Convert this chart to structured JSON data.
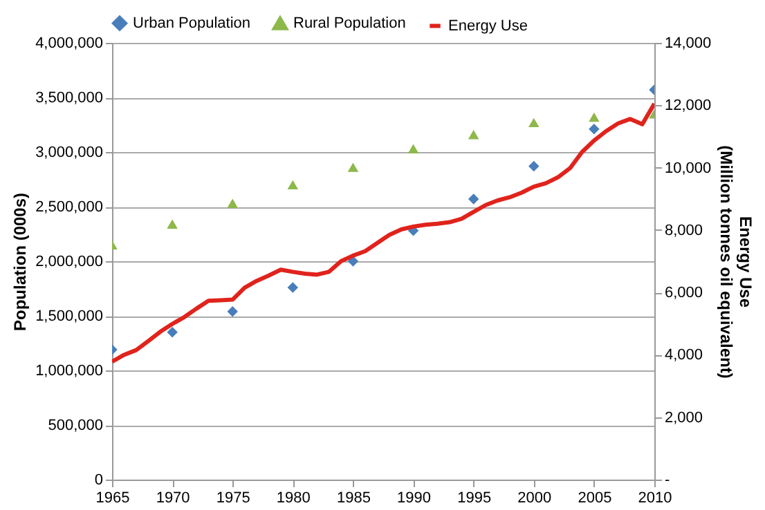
{
  "chart_data": {
    "type": "scatter",
    "xlabel": null,
    "ylabel": "Population (000s)",
    "y2label": "Energy Use\n(Million tonnes oil equivalent)",
    "x": [
      1965,
      1970,
      1975,
      1980,
      1985,
      1990,
      1995,
      2000,
      2005,
      2010
    ],
    "series": [
      {
        "name": "Urban Population",
        "color": "#4a7ebb",
        "marker": "diamond",
        "values": [
          1190000,
          1350000,
          1540000,
          1760000,
          2000000,
          2280000,
          2570000,
          2870000,
          3210000,
          3570000
        ]
      },
      {
        "name": "Rural Population",
        "color": "#8db84a",
        "marker": "triangle",
        "values": [
          2150000,
          2340000,
          2530000,
          2700000,
          2860000,
          3030000,
          3160000,
          3270000,
          3320000,
          3350000
        ]
      },
      {
        "name": "Energy Use",
        "type": "line",
        "axis": "y2",
        "color": "#e0231c",
        "marker": "none",
        "x": [
          1965,
          1966,
          1967,
          1968,
          1969,
          1970,
          1971,
          1972,
          1973,
          1974,
          1975,
          1976,
          1977,
          1978,
          1979,
          1980,
          1981,
          1982,
          1983,
          1984,
          1985,
          1986,
          1987,
          1988,
          1989,
          1990,
          1991,
          1992,
          1993,
          1994,
          1995,
          1996,
          1997,
          1998,
          1999,
          2000,
          2001,
          2002,
          2003,
          2004,
          2005,
          2006,
          2007,
          2008,
          2009,
          2010
        ],
        "values": [
          3780,
          4000,
          4150,
          4440,
          4740,
          4990,
          5210,
          5480,
          5730,
          5750,
          5770,
          6150,
          6370,
          6540,
          6730,
          6660,
          6600,
          6570,
          6660,
          7000,
          7180,
          7320,
          7580,
          7840,
          8020,
          8110,
          8170,
          8200,
          8250,
          8360,
          8580,
          8800,
          8950,
          9050,
          9200,
          9390,
          9500,
          9690,
          9980,
          10500,
          10870,
          11170,
          11420,
          11560,
          11390,
          12050
        ]
      }
    ],
    "xlim": [
      1965,
      2010
    ],
    "xticks": [
      1965,
      1970,
      1975,
      1980,
      1985,
      1990,
      1995,
      2000,
      2005,
      2010
    ],
    "ylim": [
      0,
      4000000
    ],
    "yticks": [
      0,
      {
        "value": 500000,
        "label": "500,000"
      },
      {
        "value": 1000000,
        "label": "1,000,000"
      },
      {
        "value": 1500000,
        "label": "1,500,000"
      },
      {
        "value": 2000000,
        "label": "2,000,000"
      },
      {
        "value": 2500000,
        "label": "2,500,000"
      },
      {
        "value": 3000000,
        "label": "3,000,000"
      },
      {
        "value": 3500000,
        "label": "3,500,000"
      },
      {
        "value": 4000000,
        "label": "4,000,000"
      }
    ],
    "y2lim": [
      0,
      14000
    ],
    "y2ticks": [
      {
        "value": 0,
        "label": "-"
      },
      {
        "value": 2000,
        "label": "2,000"
      },
      {
        "value": 4000,
        "label": "4,000"
      },
      {
        "value": 6000,
        "label": "6,000"
      },
      {
        "value": 8000,
        "label": "8,000"
      },
      {
        "value": 10000,
        "label": "10,000"
      },
      {
        "value": 12000,
        "label": "12,000"
      },
      {
        "value": 14000,
        "label": "14,000"
      }
    ],
    "grid": "y",
    "legend": "top"
  }
}
